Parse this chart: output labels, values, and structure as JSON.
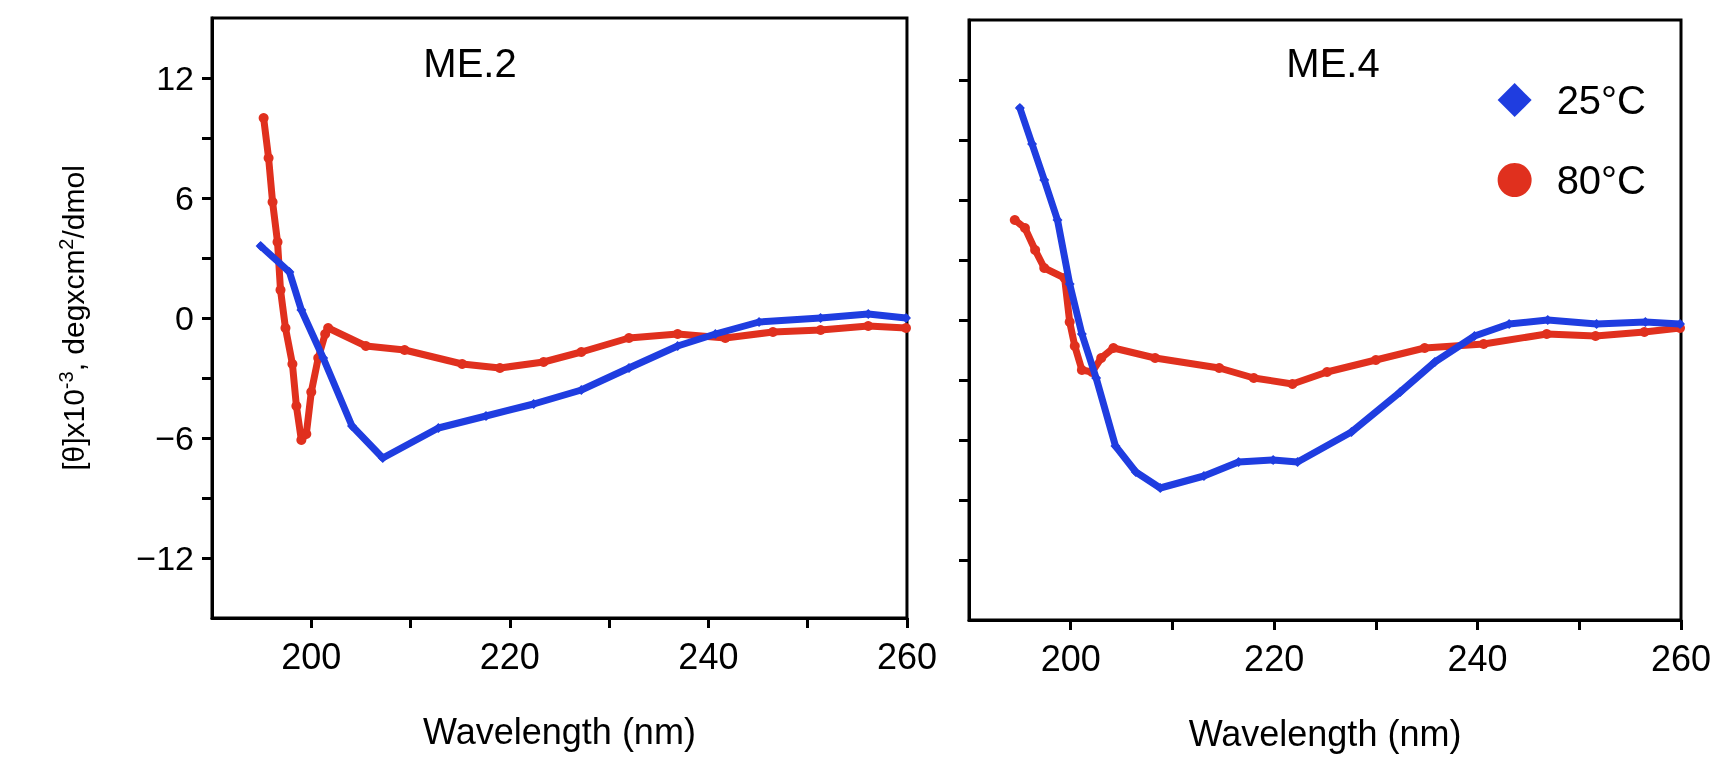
{
  "chart_data": [
    {
      "type": "line",
      "title": "ME.2",
      "xlabel": "Wavelength (nm)",
      "ylabel": "[θ]x10$^{-3}$, degxcm$^{2}$/dmol",
      "xlim": [
        190,
        260
      ],
      "xticks": [
        200,
        {
          "value": 210,
          "label": null
        },
        220,
        {
          "value": 230,
          "label": null
        },
        240,
        {
          "value": 250,
          "label": null
        },
        260
      ],
      "ylim": [
        -15,
        15
      ],
      "yticks": [
        {
          "value": -12,
          "label": "−12"
        },
        {
          "value": -9,
          "label": null
        },
        {
          "value": -6,
          "label": "−6"
        },
        {
          "value": -3,
          "label": null
        },
        0,
        {
          "value": 3,
          "label": null
        },
        6,
        {
          "value": 9,
          "label": null
        },
        12
      ],
      "grid": false,
      "legend": false,
      "line_style": "solid",
      "series": [
        {
          "color": "#1f3de0",
          "marker": "diamond",
          "x": [
            194.9,
            197.8,
            199.0,
            201.2,
            204.1,
            207.2,
            212.8,
            217.6,
            222.4,
            227.2,
            232.0,
            236.9,
            240.7,
            245.1,
            251.3,
            256.1,
            259.9
          ],
          "values": [
            3.6,
            2.3,
            0.4,
            -2.0,
            -5.4,
            -7.0,
            -5.5,
            -4.9,
            -4.3,
            -3.6,
            -2.5,
            -1.4,
            -0.8,
            -0.2,
            0.0,
            0.2,
            0.0
          ]
        },
        {
          "color": "#e0301e",
          "marker": "circle",
          "x": [
            195.2,
            195.7,
            196.1,
            196.6,
            196.9,
            197.4,
            198.1,
            198.5,
            199.0,
            199.5,
            200.0,
            200.7,
            201.4,
            201.7,
            205.5,
            209.4,
            215.2,
            219.0,
            223.4,
            227.2,
            232.0,
            236.9,
            241.7,
            246.5,
            251.3,
            256.1,
            259.9
          ],
          "values": [
            10.0,
            8.0,
            5.8,
            3.8,
            1.4,
            -0.5,
            -2.3,
            -4.4,
            -6.1,
            -5.8,
            -3.7,
            -2.0,
            -0.8,
            -0.5,
            -1.4,
            -1.6,
            -2.3,
            -2.5,
            -2.2,
            -1.7,
            -1.0,
            -0.8,
            -1.0,
            -0.7,
            -0.6,
            -0.4,
            -0.5
          ]
        }
      ]
    },
    {
      "type": "line",
      "title": "ME.4",
      "xlabel": "Wavelength (nm)",
      "tick_labels": "x",
      "xlim": [
        190,
        260
      ],
      "xticks": [
        200,
        {
          "value": 210,
          "label": null
        },
        220,
        {
          "value": 230,
          "label": null
        },
        240,
        {
          "value": 250,
          "label": null
        },
        260
      ],
      "ylim": [
        -15,
        15
      ],
      "yticks": [
        -12,
        -9,
        -6,
        -3,
        0,
        3,
        6,
        9,
        12
      ],
      "grid": false,
      "legend": "top right",
      "line_style": "solid",
      "series": [
        {
          "name": "25°C",
          "color": "#1f3de0",
          "marker": "diamond",
          "x": [
            195.0,
            196.2,
            197.4,
            198.7,
            199.9,
            201.1,
            202.5,
            204.4,
            206.4,
            208.8,
            213.1,
            216.5,
            219.9,
            222.3,
            227.6,
            232.4,
            235.8,
            239.7,
            243.1,
            246.9,
            251.7,
            256.5,
            259.9
          ],
          "values": [
            10.6,
            8.8,
            7.0,
            5.0,
            1.8,
            -0.7,
            -2.9,
            -6.3,
            -7.6,
            -8.4,
            -7.8,
            -7.1,
            -7.0,
            -7.1,
            -5.6,
            -3.6,
            -2.1,
            -0.8,
            -0.2,
            0.0,
            -0.2,
            -0.1,
            -0.2
          ]
        },
        {
          "name": "80°C",
          "color": "#e0301e",
          "marker": "circle",
          "x": [
            194.5,
            195.5,
            196.5,
            197.4,
            199.4,
            199.9,
            200.4,
            201.1,
            202.1,
            203.0,
            204.2,
            208.3,
            214.6,
            218.0,
            221.8,
            225.2,
            230.0,
            234.8,
            240.6,
            246.8,
            251.6,
            256.4,
            259.9
          ],
          "values": [
            5.0,
            4.6,
            3.5,
            2.6,
            2.1,
            -0.1,
            -1.3,
            -2.5,
            -2.6,
            -1.9,
            -1.4,
            -1.9,
            -2.4,
            -2.9,
            -3.2,
            -2.6,
            -2.0,
            -1.4,
            -1.2,
            -0.7,
            -0.8,
            -0.6,
            -0.4
          ]
        }
      ]
    }
  ]
}
